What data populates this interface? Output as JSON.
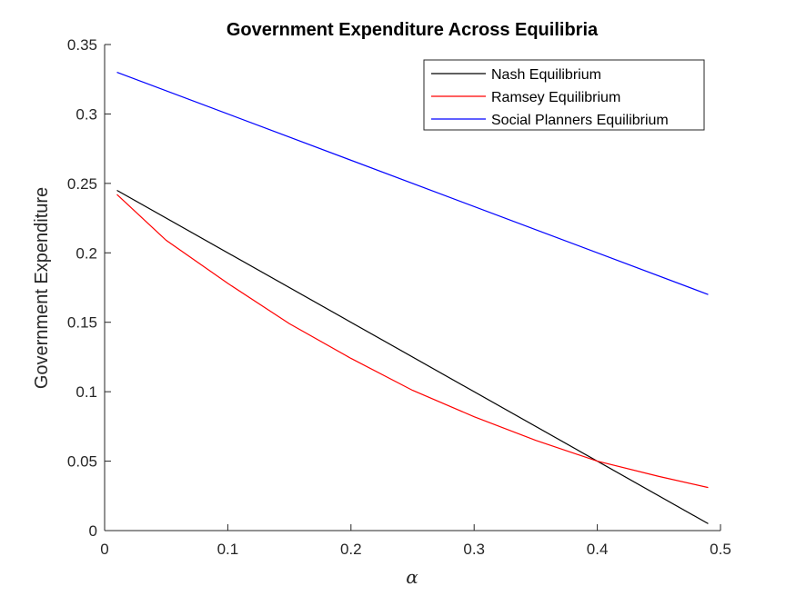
{
  "chart_data": {
    "type": "line",
    "title": "Government Expenditure Across Equilibria",
    "xlabel": "α",
    "ylabel": "Government Expenditure",
    "xlim": [
      0,
      0.5
    ],
    "ylim": [
      0,
      0.35
    ],
    "xticks": [
      0,
      0.1,
      0.2,
      0.3,
      0.4,
      0.5
    ],
    "xtick_labels": [
      "0",
      "0.1",
      "0.2",
      "0.3",
      "0.4",
      "0.5"
    ],
    "yticks": [
      0,
      0.05,
      0.1,
      0.15,
      0.2,
      0.25,
      0.3,
      0.35
    ],
    "ytick_labels": [
      "0",
      "0.05",
      "0.1",
      "0.15",
      "0.2",
      "0.25",
      "0.3",
      "0.35"
    ],
    "grid": false,
    "legend_position": "top-right",
    "series": [
      {
        "name": "Nash Equilibrium",
        "color": "#000000",
        "x": [
          0.01,
          0.49
        ],
        "y": [
          0.245,
          0.005
        ]
      },
      {
        "name": "Ramsey Equilibrium",
        "color": "#ff0000",
        "x": [
          0.01,
          0.05,
          0.1,
          0.15,
          0.2,
          0.25,
          0.3,
          0.35,
          0.4,
          0.45,
          0.49
        ],
        "y": [
          0.242,
          0.209,
          0.178,
          0.149,
          0.124,
          0.101,
          0.082,
          0.065,
          0.05,
          0.039,
          0.031
        ]
      },
      {
        "name": "Social Planners Equilibrium",
        "color": "#0000ff",
        "x": [
          0.01,
          0.49
        ],
        "y": [
          0.33,
          0.17
        ]
      }
    ]
  }
}
